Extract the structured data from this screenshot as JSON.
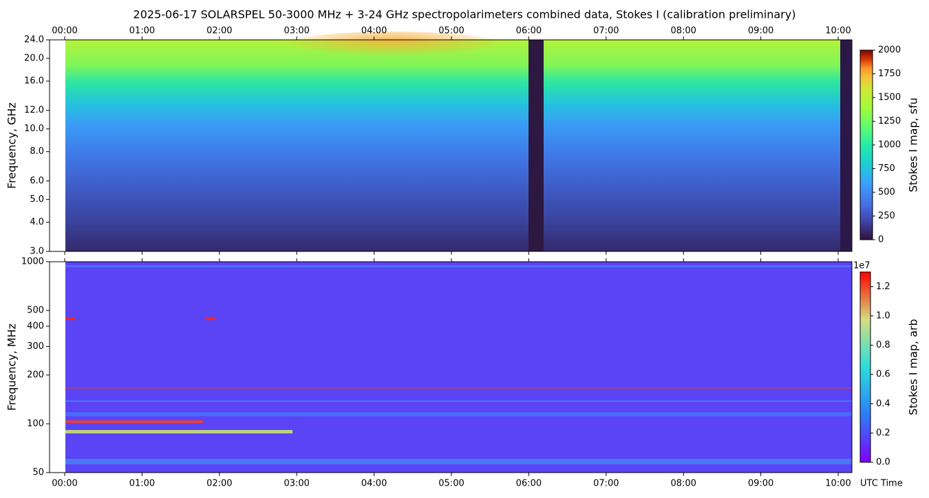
{
  "chart_data": [
    {
      "type": "heatmap",
      "title": "2025-06-17  SOLARSPEL  50-3000 MHz  +  3-24 GHz  spectropolarimeters combined data,  Stokes I  (calibration preliminary)",
      "ylabel": "Frequency, GHz",
      "ylog": true,
      "ylim": [
        3,
        24
      ],
      "yticks": [
        {
          "value": 3,
          "label": "3.0"
        },
        {
          "value": 4,
          "label": "4.0"
        },
        {
          "value": 5,
          "label": "5.0"
        },
        {
          "value": 6,
          "label": "6.0"
        },
        {
          "value": 8,
          "label": "8.0"
        },
        {
          "value": 10,
          "label": "10.0"
        },
        {
          "value": 12,
          "label": "12.0"
        },
        {
          "value": 16,
          "label": "16.0"
        },
        {
          "value": 20,
          "label": "20.0"
        },
        {
          "value": 24,
          "label": "24.0"
        }
      ],
      "xlim": [
        -0.196,
        10.178
      ],
      "xticks": [
        {
          "value": 0,
          "label": "00:00"
        },
        {
          "value": 1,
          "label": "01:00"
        },
        {
          "value": 2,
          "label": "02:00"
        },
        {
          "value": 3,
          "label": "03:00"
        },
        {
          "value": 4,
          "label": "04:00"
        },
        {
          "value": 5,
          "label": "05:00"
        },
        {
          "value": 6,
          "label": "06:00"
        },
        {
          "value": 7,
          "label": "07:00"
        },
        {
          "value": 8,
          "label": "08:00"
        },
        {
          "value": 9,
          "label": "09:00"
        },
        {
          "value": 10,
          "label": "10:00"
        }
      ],
      "colorbar": {
        "label": "Stokes I map, sfu",
        "colormap": "turbo",
        "lim": [
          0,
          2000
        ],
        "ticks": [
          0,
          250,
          500,
          750,
          1000,
          1250,
          1500,
          1750,
          2000
        ]
      }
    },
    {
      "type": "heatmap",
      "xlabel": "UTC Time",
      "ylabel": "Frequency, MHz",
      "ylog": true,
      "ylim": [
        50,
        1000
      ],
      "yticks": [
        50,
        100,
        200,
        300,
        400,
        500,
        1000
      ],
      "xlim": [
        -0.196,
        10.178
      ],
      "xticks": [
        {
          "value": 0,
          "label": "00:00"
        },
        {
          "value": 1,
          "label": "01:00"
        },
        {
          "value": 2,
          "label": "02:00"
        },
        {
          "value": 3,
          "label": "03:00"
        },
        {
          "value": 4,
          "label": "04:00"
        },
        {
          "value": 5,
          "label": "05:00"
        },
        {
          "value": 6,
          "label": "06:00"
        },
        {
          "value": 7,
          "label": "07:00"
        },
        {
          "value": 8,
          "label": "08:00"
        },
        {
          "value": 9,
          "label": "09:00"
        },
        {
          "value": 10,
          "label": "10:00"
        }
      ],
      "colorbar": {
        "label": "Stokes I map, arb",
        "colormap": "rainbow",
        "lim": [
          0,
          1.3
        ],
        "offset": "1e7",
        "ticks": [
          {
            "value": 0,
            "label": "0.0"
          },
          {
            "value": 0.2,
            "label": "0.2"
          },
          {
            "value": 0.4,
            "label": "0.4"
          },
          {
            "value": 0.6,
            "label": "0.6"
          },
          {
            "value": 0.8,
            "label": "0.8"
          },
          {
            "value": 1,
            "label": "1.0"
          },
          {
            "value": 1.2,
            "label": "1.2"
          }
        ]
      }
    }
  ]
}
